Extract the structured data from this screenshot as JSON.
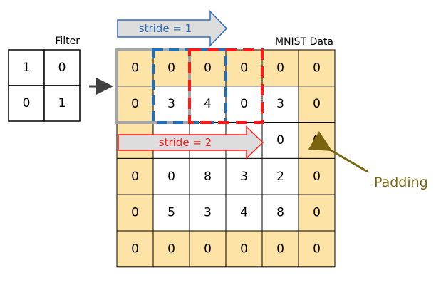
{
  "filter": {
    "title": "Filter",
    "cells": [
      [
        "1",
        "0"
      ],
      [
        "0",
        "1"
      ]
    ]
  },
  "data": {
    "title": "MNIST Data",
    "rows": [
      [
        "0",
        "0",
        "0",
        "0",
        "0",
        "0"
      ],
      [
        "0",
        "3",
        "4",
        "0",
        "3",
        "0"
      ],
      [
        "",
        "",
        "",
        "",
        "0",
        "0"
      ],
      [
        "0",
        "0",
        "8",
        "3",
        "2",
        "0"
      ],
      [
        "0",
        "5",
        "3",
        "4",
        "8",
        "0"
      ],
      [
        "0",
        "0",
        "0",
        "0",
        "0",
        "0"
      ]
    ]
  },
  "stride1": {
    "label": "stride = 1"
  },
  "stride2": {
    "label": "stride = 2"
  },
  "padding": {
    "label": "Padding"
  },
  "colors": {
    "padding_fill": "#fde4a6",
    "inner_fill": "#ffffff",
    "window_gray": "#a6a6a6",
    "window_blue": "#1f6fbf",
    "window_red": "#ff1a1a",
    "stride1_fill": "#dddddd",
    "stride1_stroke": "#2f6fc0",
    "stride1_text": "#2f6fc0",
    "stride2_fill": "#dddddd",
    "stride2_stroke": "#ff1a1a",
    "stride2_text": "#ff1a1a",
    "padding_arrow": "#7a6410"
  }
}
